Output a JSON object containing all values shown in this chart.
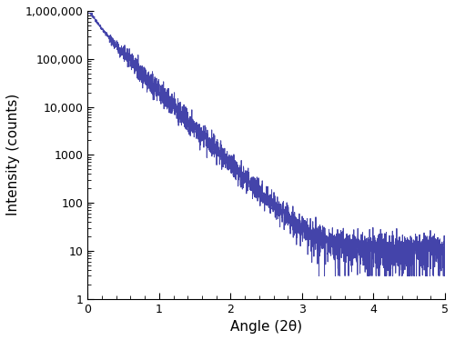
{
  "line_color": "#4444aa",
  "line_width": 0.7,
  "background_color": "#ffffff",
  "xlabel": "Angle (2θ)",
  "ylabel": "Intensity (counts)",
  "xlim": [
    0,
    5.0
  ],
  "ylim": [
    1,
    1000000
  ],
  "xticks": [
    0,
    1,
    2,
    3,
    4,
    5
  ],
  "yticks": [
    1,
    10,
    100,
    1000,
    10000,
    100000,
    1000000
  ],
  "ytick_labels": [
    "1",
    "10",
    "100",
    "1000",
    "10,000",
    "100,000",
    "1,000,000"
  ],
  "figsize": [
    5.0,
    3.74
  ],
  "dpi": 100,
  "xlabel_fontsize": 11,
  "ylabel_fontsize": 11,
  "tick_fontsize": 9
}
